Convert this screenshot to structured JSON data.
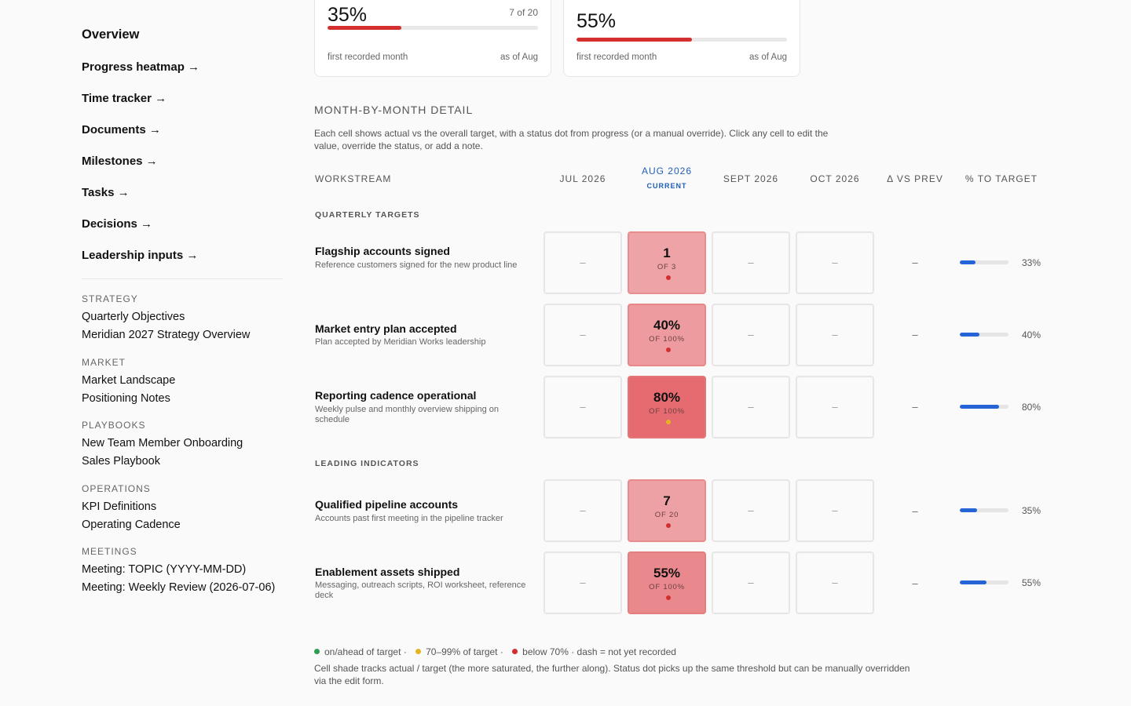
{
  "sidebar": {
    "nav": [
      {
        "label": "Overview"
      },
      {
        "label": "Progress heatmap →"
      },
      {
        "label": "Time tracker →"
      },
      {
        "label": "Documents →"
      },
      {
        "label": "Milestones →"
      },
      {
        "label": "Tasks →"
      },
      {
        "label": "Decisions →"
      },
      {
        "label": "Leadership inputs →"
      }
    ],
    "groups": [
      {
        "label": "STRATEGY",
        "items": [
          "Quarterly Objectives",
          "Meridian 2027 Strategy Overview"
        ]
      },
      {
        "label": "MARKET",
        "items": [
          "Market Landscape",
          "Positioning Notes"
        ]
      },
      {
        "label": "PLAYBOOKS",
        "items": [
          "New Team Member Onboarding",
          "Sales Playbook"
        ]
      },
      {
        "label": "OPERATIONS",
        "items": [
          "KPI Definitions",
          "Operating Cadence"
        ]
      },
      {
        "label": "MEETINGS",
        "items": [
          "Meeting: TOPIC (YYYY-MM-DD)",
          "Meeting: Weekly Review (2026-07-06)"
        ]
      }
    ]
  },
  "stat_cards": [
    {
      "value": "35%",
      "right": "7 of 20",
      "progress": 0.35,
      "foot_left": "first recorded month",
      "foot_right": "as of Aug"
    },
    {
      "value": "55%",
      "right": "",
      "progress": 0.55,
      "foot_left": "first recorded month",
      "foot_right": "as of Aug"
    }
  ],
  "section": {
    "title": "MONTH-BY-MONTH DETAIL",
    "description": "Each cell shows actual vs the overall target, with a status dot from progress (or a manual override). Click any cell to edit the value, override the status, or add a note."
  },
  "columns": {
    "workstream": "WORKSTREAM",
    "months": [
      "JUL 2026",
      "AUG 2026",
      "SEPT 2026",
      "OCT 2026"
    ],
    "current_label": "CURRENT",
    "delta": "Δ VS PREV",
    "pct": "% TO TARGET"
  },
  "groups": [
    {
      "label": "QUARTERLY TARGETS"
    },
    {
      "label": "LEADING INDICATORS"
    }
  ],
  "rows": [
    {
      "title": "Flagship accounts signed",
      "subtitle": "Reference customers signed for the new product line",
      "actual": "1",
      "of": "OF 3",
      "status": "below",
      "delta": "–",
      "progress": 0.33,
      "pct": "33%",
      "empty": "–"
    },
    {
      "title": "Market entry plan accepted",
      "subtitle": "Plan accepted by Meridian Works leadership",
      "actual": "40%",
      "of": "OF 100%",
      "status": "below",
      "delta": "–",
      "progress": 0.4,
      "pct": "40%",
      "empty": "–"
    },
    {
      "title": "Reporting cadence operational",
      "subtitle": "Weekly pulse and monthly overview shipping on schedule",
      "actual": "80%",
      "of": "OF 100%",
      "status": "near",
      "delta": "–",
      "progress": 0.8,
      "pct": "80%",
      "empty": "–"
    },
    {
      "title": "Qualified pipeline accounts",
      "subtitle": "Accounts past first meeting in the pipeline tracker",
      "actual": "7",
      "of": "OF 20",
      "status": "below",
      "delta": "–",
      "progress": 0.35,
      "pct": "35%",
      "empty": "–"
    },
    {
      "title": "Enablement assets shipped",
      "subtitle": "Messaging, outreach scripts, ROI worksheet, reference deck",
      "actual": "55%",
      "of": "OF 100%",
      "status": "below",
      "delta": "–",
      "progress": 0.55,
      "pct": "55%",
      "empty": "–"
    }
  ],
  "colors": {
    "status_on": "#2e9e4f",
    "status_near": "#e6b422",
    "status_below": "#d32f2f",
    "progress_blue": "#2563d6",
    "current_blue": "#1e5fb8"
  },
  "legend": {
    "on": "on/ahead of target ·",
    "near": "70–99% of target ·",
    "below": "below 70% · dash = not yet recorded",
    "note": "Cell shade tracks actual / target (the more saturated, the further along). Status dot picks up the same threshold but can be manually overridden via the edit form."
  }
}
